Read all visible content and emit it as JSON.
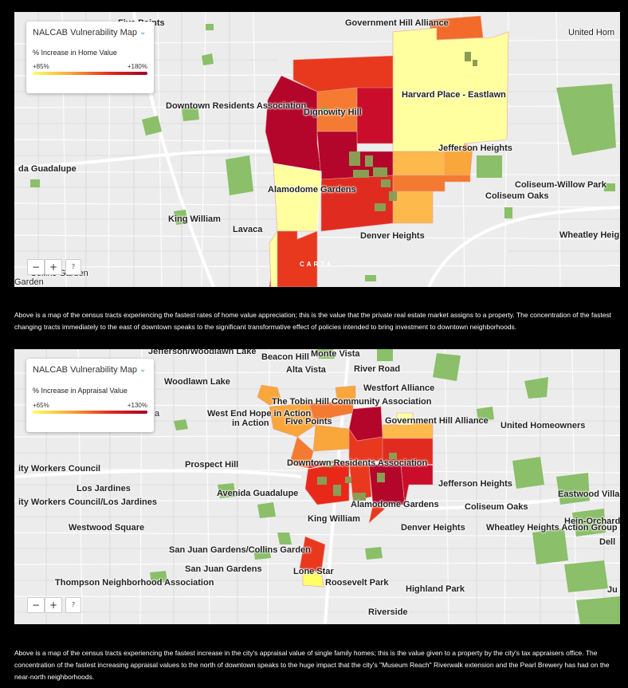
{
  "map1": {
    "legend": {
      "title": "NALCAB Vulnerability Map",
      "subtitle": "% Increase in Home Value",
      "min_label": "+85%",
      "max_label": "+180%",
      "scale_colors": [
        "#ffff66",
        "#f9a63a",
        "#e8291a",
        "#a50026"
      ]
    },
    "labels": {
      "top_cut": "Five Points",
      "gov_hill": "Government Hill Alliance",
      "united": "United Hom",
      "downtown": "Downtown Residents Association",
      "dignowity": "Dignowity Hill",
      "harvard": "Harvard Place - Eastlawn",
      "guadalupe": "da Guadalupe",
      "jefferson": "Jefferson Heights",
      "alamodome": "Alamodome Gardens",
      "coliseum_willow": "Coliseum-Willow Park",
      "coliseum_oaks": "Coliseum Oaks",
      "king_william": "King William",
      "lavaca": "Lavaca",
      "denver": "Denver Heights",
      "wheatley": "Wheatley Heig",
      "collins_cut": "Collins Garden",
      "garden_cut": "Garden",
      "carta": "CARTA"
    },
    "zoom": {
      "in": "+",
      "out": "−",
      "help": "?"
    }
  },
  "caption1": "Above is a map of the census tracts experiencing the fastest rates of home value appreciation; this is the value that the private real estate market assigns to a property. The concentration of the fastest changing tracts immediately to the east of downtown speaks to the significant transformative effect of policies intended to bring investment to downtown neighborhoods.",
  "map2": {
    "legend": {
      "title": "NALCAB Vulnerability Map",
      "subtitle": "% Increase in Appraisal Value",
      "min_label": "+65%",
      "max_label": "+130%",
      "scale_colors": [
        "#ffff66",
        "#f9a63a",
        "#e8291a",
        "#a50026"
      ]
    },
    "labels": {
      "jefferson_woodlawn": "Jefferson/Woodlawn Lake",
      "beacon": "Beacon Hill",
      "monte_vista": "Monte Vista",
      "alta_vista": "Alta Vista",
      "river_road": "River Road",
      "woodlawn": "Woodlawn Lake",
      "westfort": "Westfort Alliance",
      "tobin": "The Tobin Hill Community Association",
      "west_end": "West End Hope in Action",
      "five_points": "Five Points",
      "gov_hill": "Government Hill Alliance",
      "united": "United Homeowners",
      "cut_a": "a",
      "city_workers": "ity Workers Council",
      "prospect": "Prospect Hill",
      "downtown": "Downtown Residents Association",
      "los_jardines": "Los Jardines",
      "avenida": "Avenida Guadalupe",
      "jefferson_heights": "Jefferson Heights",
      "eastwood": "Eastwood Villag",
      "city_workers_lj": "ity Workers Council/Los Jardines",
      "alamodome": "Alamodome Gardens",
      "coliseum_oaks": "Coliseum Oaks",
      "hein": "Hein-Orchard",
      "king_william": "King William",
      "westwood": "Westwood Square",
      "denver": "Denver Heights",
      "wheatley": "Wheatley Heights Action Group",
      "dell": "Dell",
      "san_juan_collins": "San Juan Gardens/Collins Garden",
      "san_juan": "San Juan Gardens",
      "lone_star": "Lone Star",
      "thompson": "Thompson Neighborhood Association",
      "roosevelt": "Roosevelt Park",
      "highland": "Highland Park",
      "ju": "Ju",
      "riverside": "Riverside"
    },
    "zoom": {
      "in": "+",
      "out": "−",
      "help": "?"
    }
  },
  "caption2": "Above is a map of the census tracts experiencing the fastest increase in the city's appraisal value of single family homes; this is the value given to a property by the city's tax appraisers office. The concentration of the fastest increasing appraisal values to the north of downtown speaks to the huge impact that the city's \"Museum Reach\" Riverwalk extension and the Pearl Brewery has had on the near-north neighborhoods."
}
